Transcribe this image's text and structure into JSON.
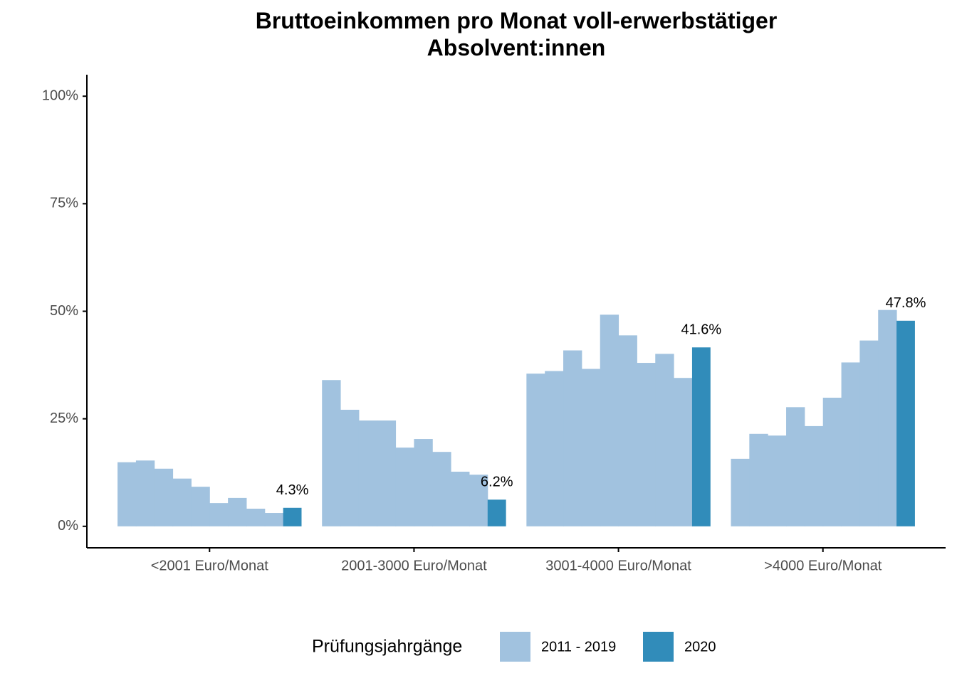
{
  "chart_data": {
    "type": "bar",
    "title": "Bruttoeinkommen pro Monat voll-erwerbstätiger\nAbsolvent:innen",
    "categories": [
      "<2001 Euro/Monat",
      "2001-3000 Euro/Monat",
      "3001-4000 Euro/Monat",
      ">4000 Euro/Monat"
    ],
    "legend_title": "Prüfungsjahrgänge",
    "series": [
      {
        "name": "2011 - 2019",
        "color": "#a1c2df",
        "values": [
          [
            14.9,
            15.3,
            13.4,
            11.1,
            9.2,
            5.4,
            6.6,
            4.1,
            3.1
          ],
          [
            34.0,
            27.1,
            24.6,
            24.6,
            18.3,
            20.3,
            17.3,
            12.7,
            12.0
          ],
          [
            35.5,
            36.1,
            40.9,
            36.6,
            49.2,
            44.4,
            38.0,
            40.1,
            34.5
          ],
          [
            15.7,
            21.5,
            21.1,
            27.7,
            23.3,
            29.9,
            38.1,
            43.2,
            50.3
          ]
        ]
      },
      {
        "name": "2020",
        "color": "#318cba",
        "values": [
          4.3,
          6.2,
          41.6,
          47.8
        ],
        "value_labels": [
          "4.3%",
          "6.2%",
          "41.6%",
          "47.8%"
        ]
      }
    ],
    "ylim": [
      -5,
      105
    ],
    "yticks": [
      {
        "value": 0,
        "label": "0%"
      },
      {
        "value": 25,
        "label": "25%"
      },
      {
        "value": 50,
        "label": "50%"
      },
      {
        "value": 75,
        "label": "75%"
      },
      {
        "value": 100,
        "label": "100%"
      }
    ],
    "legend_position": "bottom"
  }
}
